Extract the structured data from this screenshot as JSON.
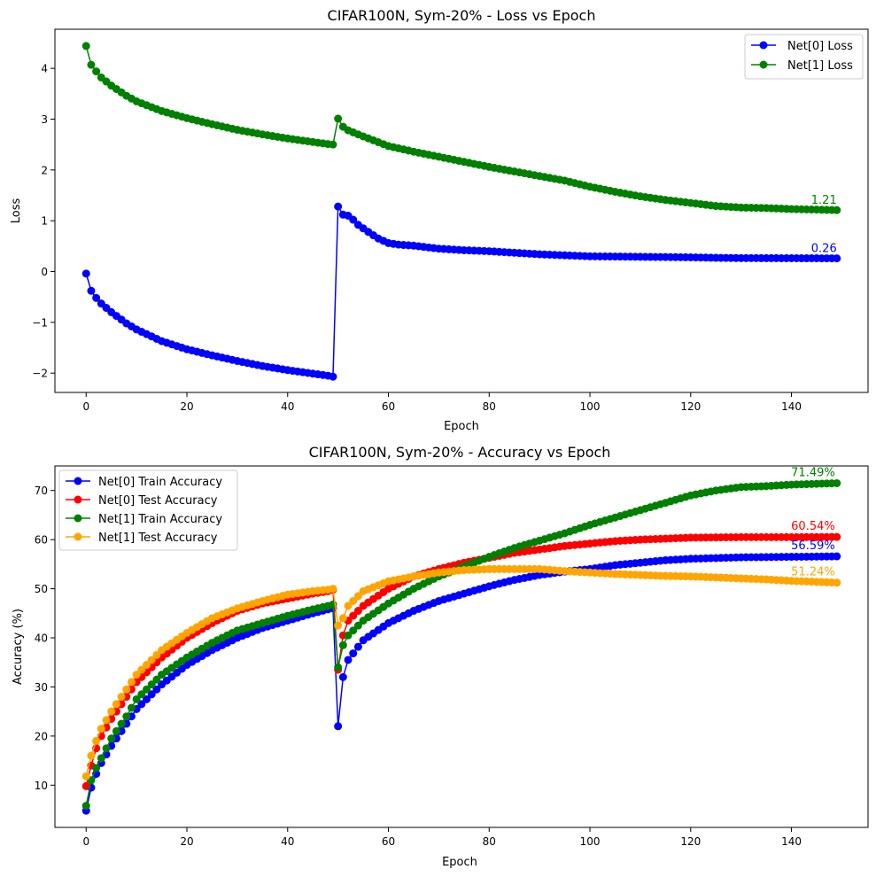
{
  "chart_data": [
    {
      "type": "line",
      "title": "CIFAR100N, Sym-20% - Loss vs Epoch",
      "xlabel": "Epoch",
      "ylabel": "Loss",
      "xlim": [
        -6.2,
        155.2
      ],
      "ylim": [
        -2.38,
        4.77
      ],
      "xticks": [
        0,
        20,
        40,
        60,
        80,
        100,
        120,
        140
      ],
      "yticks": [
        -2,
        -1,
        0,
        1,
        2,
        3,
        4
      ],
      "grid": false,
      "legend": "top-right",
      "x_range": [
        0,
        149
      ],
      "series": [
        {
          "name": "Net[0] Loss",
          "color": "#0000ff",
          "end_label": "0.26",
          "keypoints": [
            [
              0,
              -0.04
            ],
            [
              1,
              -0.38
            ],
            [
              2,
              -0.52
            ],
            [
              3,
              -0.63
            ],
            [
              5,
              -0.8
            ],
            [
              8,
              -1.02
            ],
            [
              10,
              -1.14
            ],
            [
              15,
              -1.37
            ],
            [
              20,
              -1.53
            ],
            [
              25,
              -1.65
            ],
            [
              30,
              -1.76
            ],
            [
              35,
              -1.86
            ],
            [
              40,
              -1.94
            ],
            [
              45,
              -2.01
            ],
            [
              48,
              -2.05
            ],
            [
              49,
              -2.07
            ],
            [
              50,
              1.28
            ],
            [
              51,
              1.12
            ],
            [
              52,
              1.1
            ],
            [
              53,
              1.02
            ],
            [
              54,
              0.92
            ],
            [
              56,
              0.78
            ],
            [
              58,
              0.65
            ],
            [
              60,
              0.56
            ],
            [
              62,
              0.53
            ],
            [
              65,
              0.51
            ],
            [
              70,
              0.45
            ],
            [
              75,
              0.42
            ],
            [
              80,
              0.4
            ],
            [
              85,
              0.37
            ],
            [
              90,
              0.34
            ],
            [
              95,
              0.32
            ],
            [
              100,
              0.3
            ],
            [
              110,
              0.29
            ],
            [
              120,
              0.28
            ],
            [
              125,
              0.27
            ],
            [
              130,
              0.265
            ],
            [
              149,
              0.26
            ]
          ]
        },
        {
          "name": "Net[1] Loss",
          "color": "#008000",
          "end_label": "1.21",
          "keypoints": [
            [
              0,
              4.44
            ],
            [
              1,
              4.07
            ],
            [
              2,
              3.94
            ],
            [
              3,
              3.82
            ],
            [
              5,
              3.66
            ],
            [
              8,
              3.46
            ],
            [
              10,
              3.35
            ],
            [
              15,
              3.16
            ],
            [
              20,
              3.02
            ],
            [
              25,
              2.9
            ],
            [
              30,
              2.79
            ],
            [
              35,
              2.7
            ],
            [
              40,
              2.62
            ],
            [
              45,
              2.55
            ],
            [
              48,
              2.51
            ],
            [
              49,
              2.5
            ],
            [
              50,
              3.01
            ],
            [
              51,
              2.85
            ],
            [
              52,
              2.78
            ],
            [
              55,
              2.66
            ],
            [
              60,
              2.47
            ],
            [
              65,
              2.36
            ],
            [
              70,
              2.26
            ],
            [
              75,
              2.16
            ],
            [
              80,
              2.06
            ],
            [
              85,
              1.97
            ],
            [
              90,
              1.88
            ],
            [
              95,
              1.79
            ],
            [
              100,
              1.67
            ],
            [
              105,
              1.57
            ],
            [
              110,
              1.48
            ],
            [
              115,
              1.41
            ],
            [
              120,
              1.35
            ],
            [
              125,
              1.29
            ],
            [
              130,
              1.26
            ],
            [
              135,
              1.25
            ],
            [
              140,
              1.23
            ],
            [
              149,
              1.21
            ]
          ]
        }
      ]
    },
    {
      "type": "line",
      "title": "CIFAR100N, Sym-20% - Accuracy vs Epoch",
      "xlabel": "Epoch",
      "ylabel": "Accuracy (%)",
      "xlim": [
        -6.2,
        155.2
      ],
      "ylim": [
        1.4,
        75.0
      ],
      "xticks": [
        0,
        20,
        40,
        60,
        80,
        100,
        120,
        140
      ],
      "yticks": [
        10,
        20,
        30,
        40,
        50,
        60,
        70
      ],
      "grid": false,
      "legend": "top-left",
      "x_range": [
        0,
        149
      ],
      "series": [
        {
          "name": "Net[0] Train Accuracy",
          "color": "#0000ff",
          "end_label": "56.59%",
          "keypoints": [
            [
              0,
              4.8
            ],
            [
              1,
              9.5
            ],
            [
              2,
              12.3
            ],
            [
              3,
              14.5
            ],
            [
              5,
              18.0
            ],
            [
              8,
              22.5
            ],
            [
              10,
              25.5
            ],
            [
              15,
              30.5
            ],
            [
              20,
              34.5
            ],
            [
              25,
              37.5
            ],
            [
              30,
              40.0
            ],
            [
              35,
              42.0
            ],
            [
              40,
              43.5
            ],
            [
              45,
              45.0
            ],
            [
              48,
              45.8
            ],
            [
              49,
              46.0
            ],
            [
              50,
              22.0
            ],
            [
              51,
              32.0
            ],
            [
              52,
              35.5
            ],
            [
              55,
              39.5
            ],
            [
              60,
              43.0
            ],
            [
              65,
              45.5
            ],
            [
              70,
              47.5
            ],
            [
              75,
              49.0
            ],
            [
              80,
              50.5
            ],
            [
              85,
              51.8
            ],
            [
              90,
              52.8
            ],
            [
              95,
              53.5
            ],
            [
              100,
              54.0
            ],
            [
              105,
              54.8
            ],
            [
              110,
              55.3
            ],
            [
              115,
              55.8
            ],
            [
              120,
              56.1
            ],
            [
              130,
              56.4
            ],
            [
              140,
              56.5
            ],
            [
              149,
              56.59
            ]
          ]
        },
        {
          "name": "Net[0] Test Accuracy",
          "color": "#ff0000",
          "end_label": "60.54%",
          "keypoints": [
            [
              0,
              9.8
            ],
            [
              1,
              14.0
            ],
            [
              2,
              17.5
            ],
            [
              3,
              20.0
            ],
            [
              5,
              23.5
            ],
            [
              8,
              28.0
            ],
            [
              10,
              31.0
            ],
            [
              15,
              36.0
            ],
            [
              20,
              40.0
            ],
            [
              25,
              43.0
            ],
            [
              30,
              45.5
            ],
            [
              35,
              47.0
            ],
            [
              40,
              48.0
            ],
            [
              45,
              49.0
            ],
            [
              48,
              49.5
            ],
            [
              49,
              49.8
            ],
            [
              50,
              33.5
            ],
            [
              51,
              40.5
            ],
            [
              52,
              43.5
            ],
            [
              55,
              46.5
            ],
            [
              60,
              50.0
            ],
            [
              65,
              52.5
            ],
            [
              70,
              54.0
            ],
            [
              75,
              55.3
            ],
            [
              80,
              56.3
            ],
            [
              85,
              57.3
            ],
            [
              90,
              58.0
            ],
            [
              95,
              58.7
            ],
            [
              100,
              59.2
            ],
            [
              105,
              59.7
            ],
            [
              110,
              60.0
            ],
            [
              115,
              60.2
            ],
            [
              120,
              60.4
            ],
            [
              130,
              60.5
            ],
            [
              140,
              60.5
            ],
            [
              149,
              60.54
            ]
          ]
        },
        {
          "name": "Net[1] Train Accuracy",
          "color": "#008000",
          "end_label": "71.49%",
          "keypoints": [
            [
              0,
              5.8
            ],
            [
              1,
              11.0
            ],
            [
              2,
              13.5
            ],
            [
              3,
              15.5
            ],
            [
              5,
              19.5
            ],
            [
              8,
              24.0
            ],
            [
              10,
              27.5
            ],
            [
              15,
              32.5
            ],
            [
              20,
              36.0
            ],
            [
              25,
              39.0
            ],
            [
              30,
              41.5
            ],
            [
              35,
              43.0
            ],
            [
              40,
              44.5
            ],
            [
              45,
              45.8
            ],
            [
              48,
              46.5
            ],
            [
              49,
              46.8
            ],
            [
              50,
              34.0
            ],
            [
              51,
              38.5
            ],
            [
              52,
              40.5
            ],
            [
              55,
              43.5
            ],
            [
              60,
              47.0
            ],
            [
              65,
              50.0
            ],
            [
              70,
              52.5
            ],
            [
              75,
              54.5
            ],
            [
              80,
              56.5
            ],
            [
              85,
              58.3
            ],
            [
              90,
              59.8
            ],
            [
              95,
              61.3
            ],
            [
              100,
              63.0
            ],
            [
              105,
              64.5
            ],
            [
              110,
              66.0
            ],
            [
              115,
              67.5
            ],
            [
              120,
              69.0
            ],
            [
              125,
              70.0
            ],
            [
              130,
              70.7
            ],
            [
              135,
              70.9
            ],
            [
              140,
              71.2
            ],
            [
              149,
              71.49
            ]
          ]
        },
        {
          "name": "Net[1] Test Accuracy",
          "color": "#ffa500",
          "end_label": "51.24%",
          "keypoints": [
            [
              0,
              11.8
            ],
            [
              1,
              16.0
            ],
            [
              2,
              19.0
            ],
            [
              3,
              21.5
            ],
            [
              5,
              25.0
            ],
            [
              8,
              29.5
            ],
            [
              10,
              32.5
            ],
            [
              15,
              37.5
            ],
            [
              20,
              41.0
            ],
            [
              25,
              44.0
            ],
            [
              30,
              46.0
            ],
            [
              35,
              47.5
            ],
            [
              40,
              48.8
            ],
            [
              45,
              49.5
            ],
            [
              48,
              49.8
            ],
            [
              49,
              50.0
            ],
            [
              50,
              42.5
            ],
            [
              51,
              44.0
            ],
            [
              52,
              46.5
            ],
            [
              55,
              49.5
            ],
            [
              60,
              51.5
            ],
            [
              65,
              52.5
            ],
            [
              70,
              53.3
            ],
            [
              75,
              53.8
            ],
            [
              80,
              54.0
            ],
            [
              85,
              54.0
            ],
            [
              90,
              54.0
            ],
            [
              95,
              53.6
            ],
            [
              100,
              53.3
            ],
            [
              105,
              53.0
            ],
            [
              110,
              52.8
            ],
            [
              115,
              52.6
            ],
            [
              120,
              52.5
            ],
            [
              125,
              52.3
            ],
            [
              130,
              52.1
            ],
            [
              135,
              51.9
            ],
            [
              140,
              51.6
            ],
            [
              149,
              51.24
            ]
          ]
        }
      ]
    }
  ]
}
